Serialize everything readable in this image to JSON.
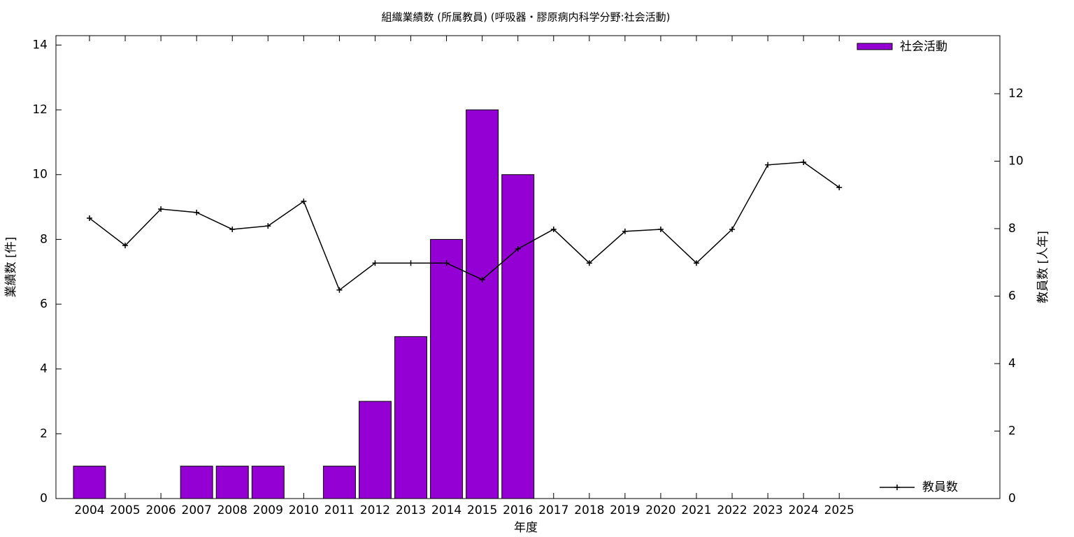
{
  "chart_data": {
    "type": "bar",
    "title": "組織業績数 (所属教員) (呼吸器・膠原病内科学分野:社会活動)",
    "xlabel": "年度",
    "ylabel": "業績数 [件]",
    "y2label": "教員数 [人年]",
    "x": [
      2004,
      2005,
      2006,
      2007,
      2008,
      2009,
      2010,
      2011,
      2012,
      2013,
      2014,
      2015,
      2016,
      2017,
      2018,
      2019,
      2020,
      2021,
      2022,
      2023,
      2024,
      2025
    ],
    "xlim": [
      2003.06,
      2029.5
    ],
    "xticks": [
      2004,
      2005,
      2006,
      2007,
      2008,
      2009,
      2010,
      2011,
      2012,
      2013,
      2014,
      2015,
      2016,
      2017,
      2018,
      2019,
      2020,
      2021,
      2022,
      2023,
      2024,
      2025
    ],
    "ylim": [
      0,
      14.29
    ],
    "yticks": [
      0,
      2,
      4,
      6,
      8,
      10,
      12,
      14
    ],
    "y2lim": [
      0,
      13.72
    ],
    "y2ticks": [
      0,
      2,
      4,
      6,
      8,
      10,
      12
    ],
    "series": [
      {
        "name": "社会活動",
        "type": "bar",
        "color": "#9400d3",
        "values": [
          1,
          0,
          0,
          1,
          1,
          1,
          0,
          1,
          3,
          5,
          8,
          12,
          10,
          0,
          0,
          0,
          0,
          0,
          0,
          0,
          0,
          0
        ]
      },
      {
        "name": "教員数",
        "type": "line",
        "axis": "y2",
        "color": "#000000",
        "values": [
          8.31,
          7.5,
          8.58,
          8.48,
          7.98,
          8.08,
          8.81,
          6.18,
          6.98,
          6.98,
          6.98,
          6.49,
          7.4,
          7.98,
          6.98,
          7.92,
          7.98,
          6.98,
          7.98,
          9.89,
          9.97,
          9.22
        ]
      }
    ]
  }
}
